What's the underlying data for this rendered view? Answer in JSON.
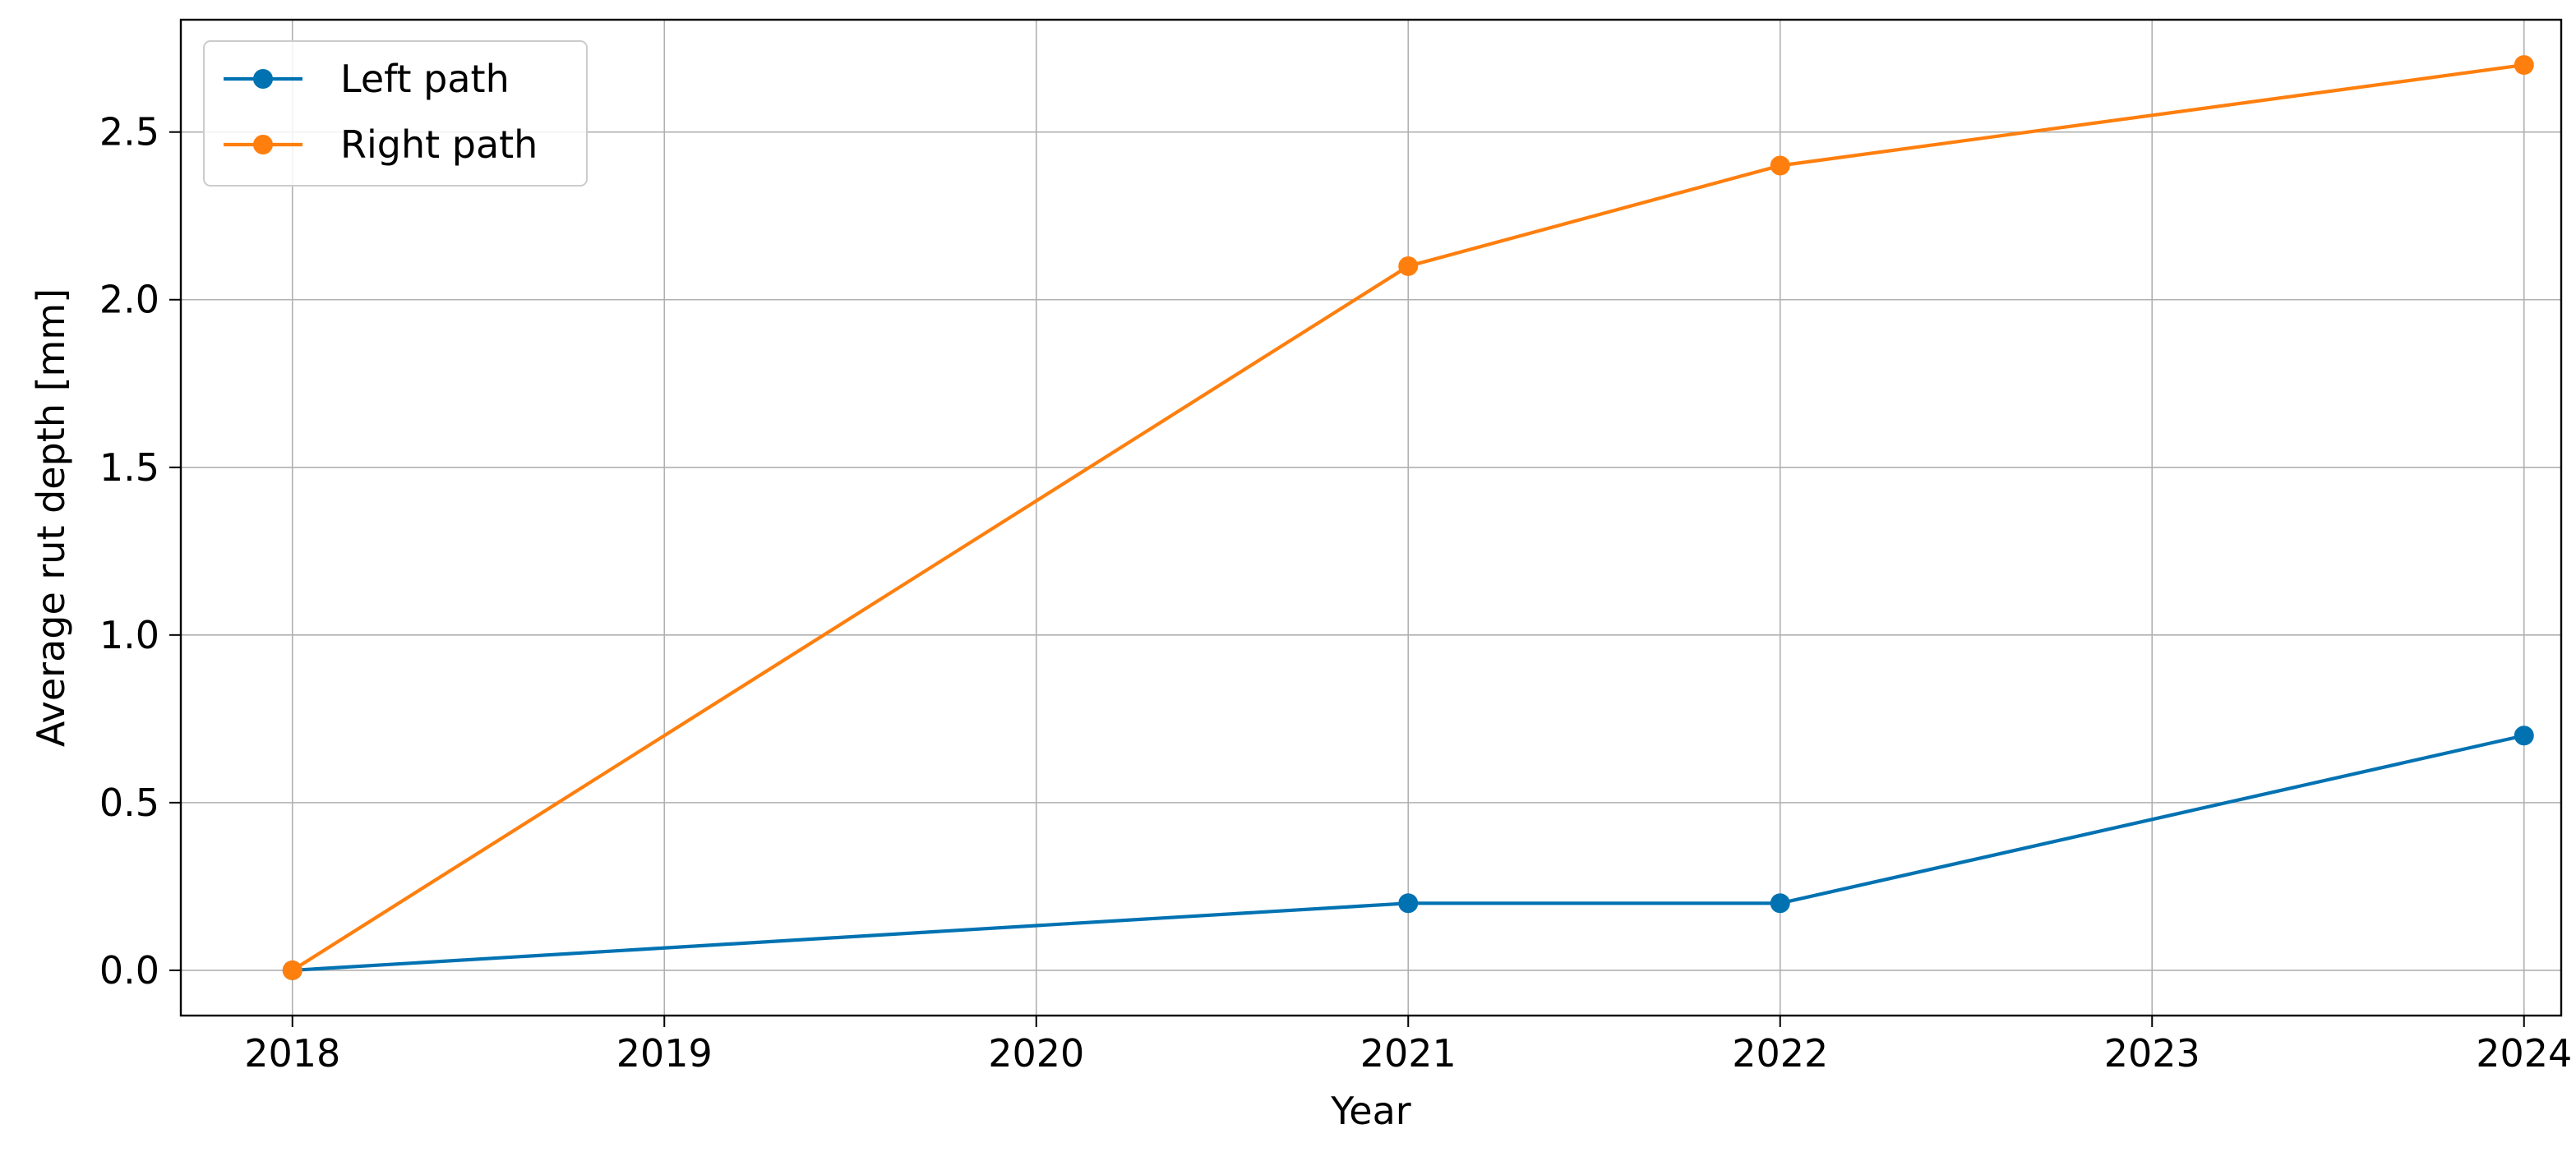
{
  "chart_data": {
    "type": "line",
    "title": "",
    "xlabel": "Year",
    "ylabel": "Average rut depth [mm]",
    "x": [
      2018,
      2021,
      2022,
      2024
    ],
    "xlim": [
      2017.7,
      2024.1
    ],
    "ylim": [
      -0.135,
      2.835
    ],
    "xticks": [
      "2018",
      "2019",
      "2020",
      "2021",
      "2022",
      "2023",
      "2024"
    ],
    "yticks": [
      "0.0",
      "0.5",
      "1.0",
      "1.5",
      "2.0",
      "2.5"
    ],
    "grid": true,
    "legend_position": "top-left",
    "series": [
      {
        "name": "Left path",
        "color": "#0072b2",
        "values": [
          0.0,
          0.2,
          0.2,
          0.7
        ]
      },
      {
        "name": "Right path",
        "color": "#ff7f0e",
        "values": [
          0.0,
          2.1,
          2.4,
          2.7
        ]
      }
    ]
  }
}
